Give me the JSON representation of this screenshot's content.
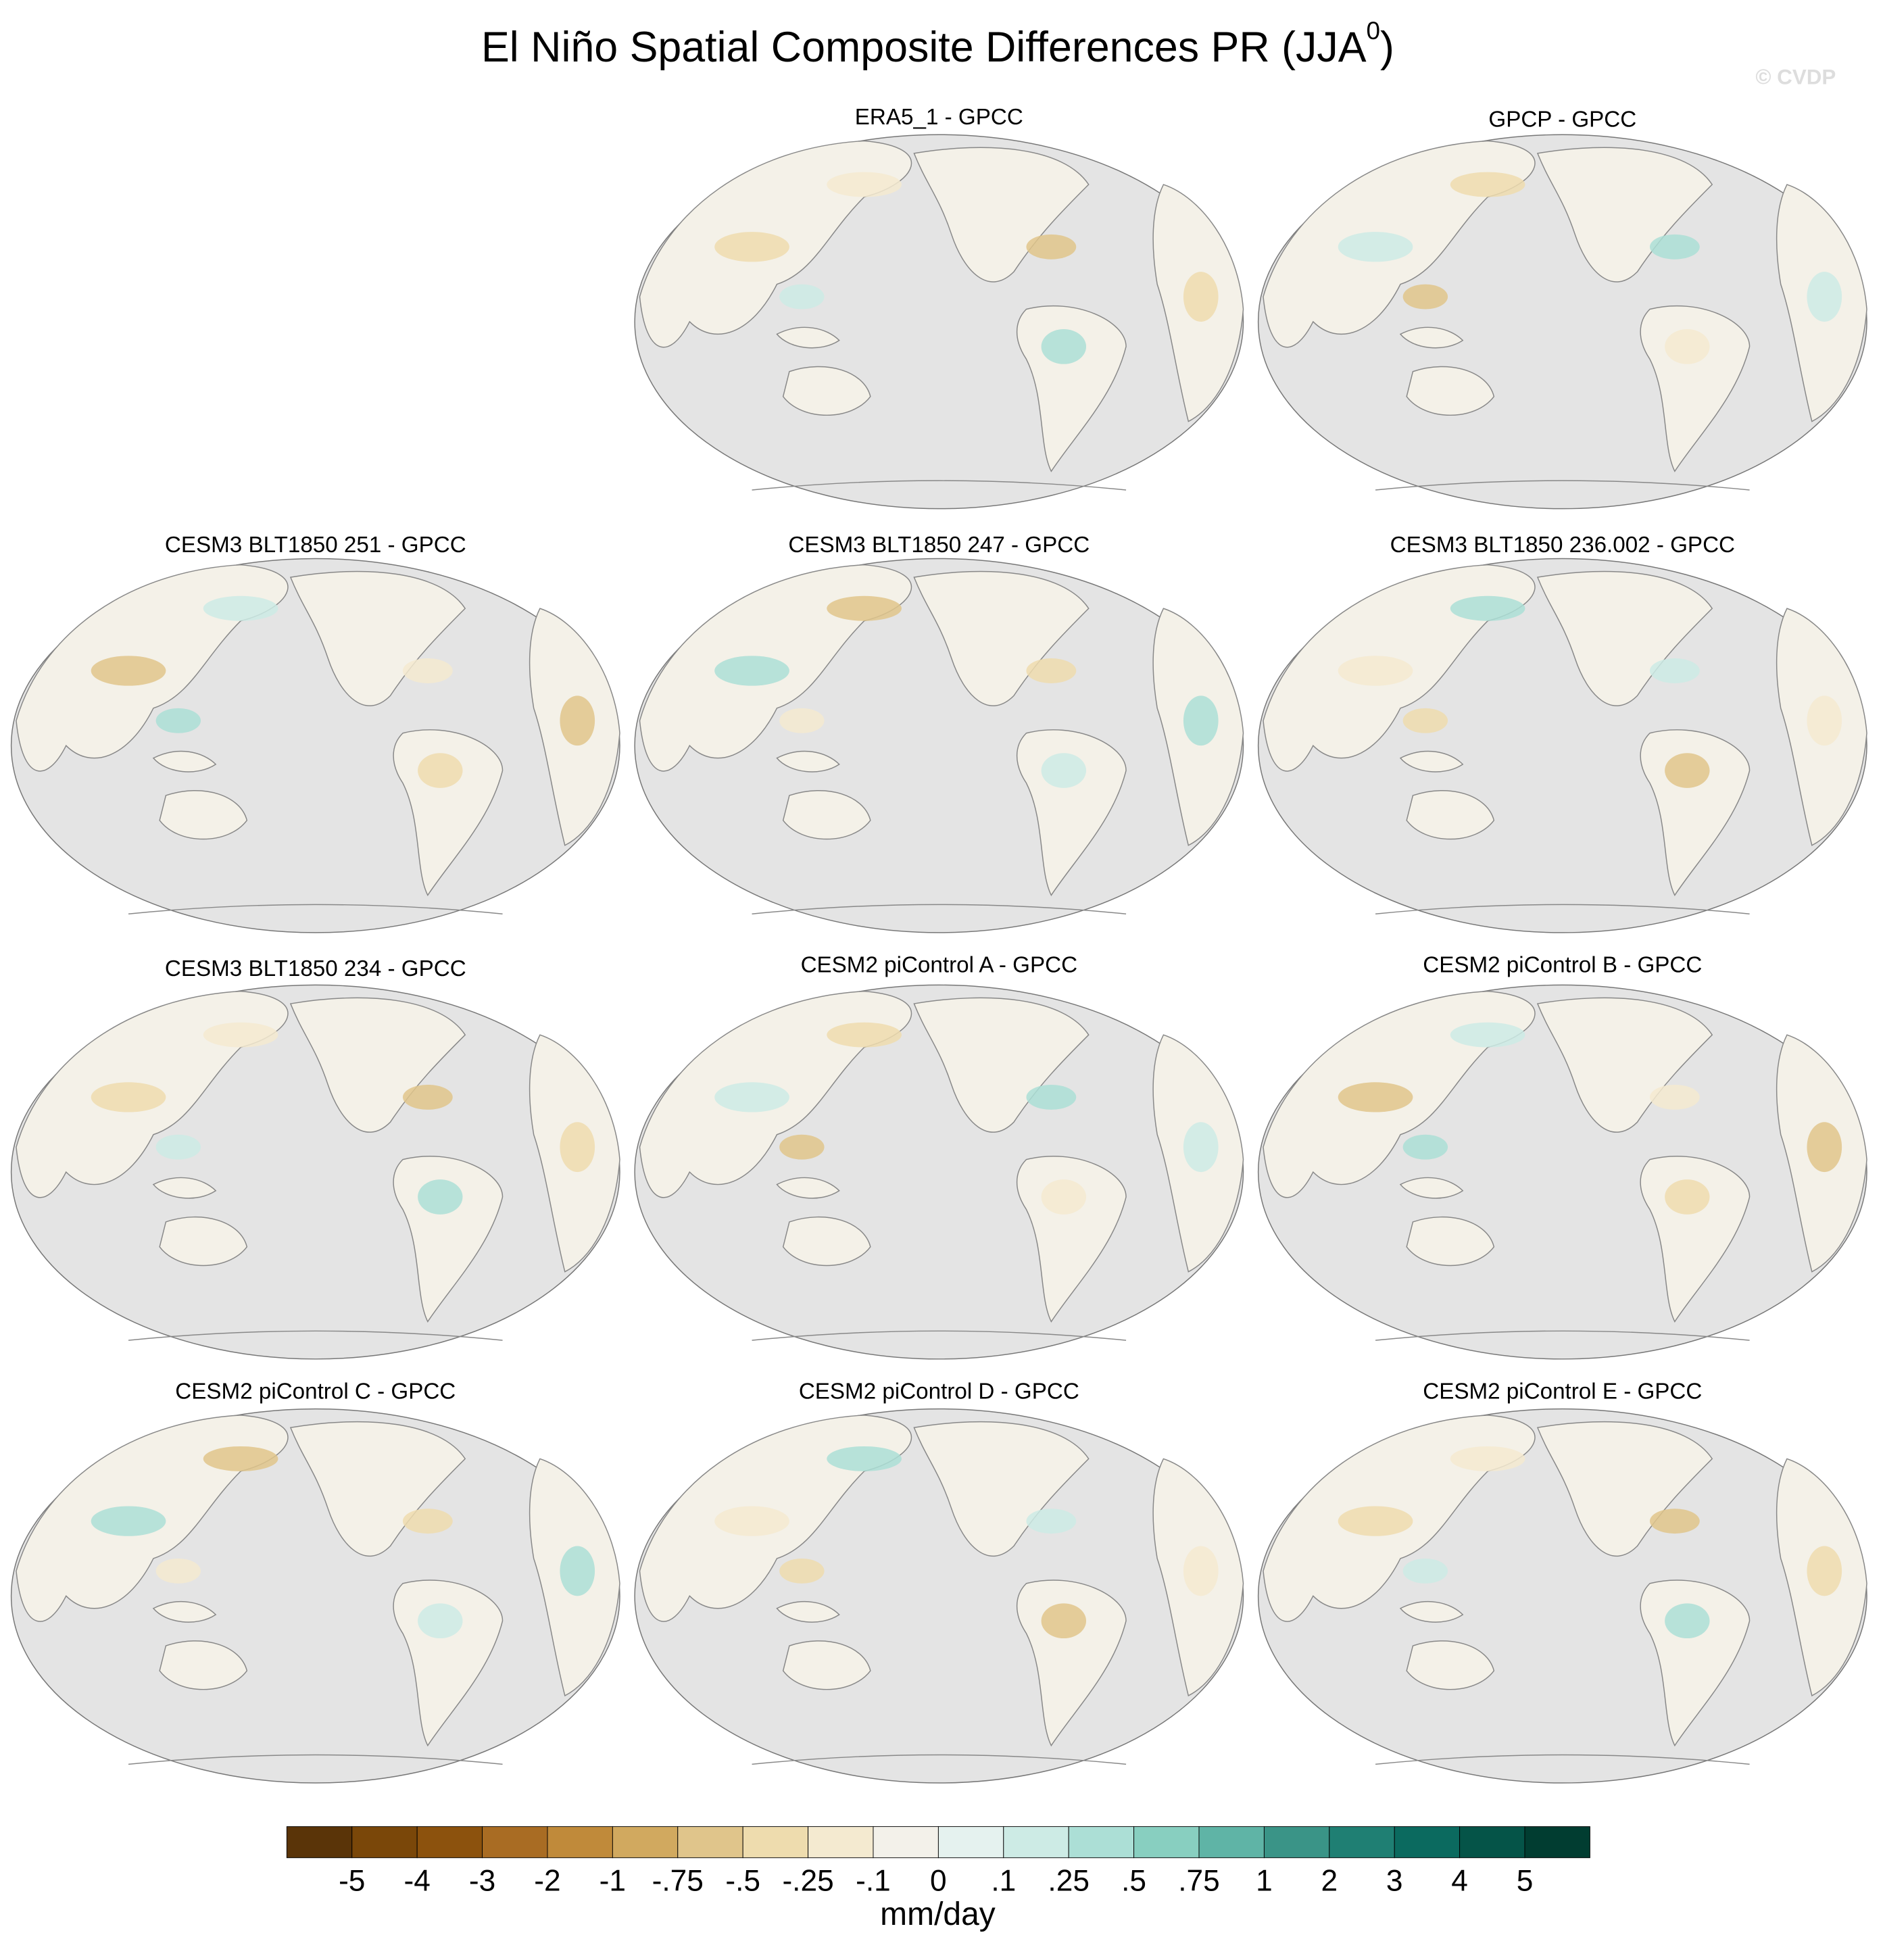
{
  "header": {
    "title": {
      "text": "El Niño Spatial Composite Differences PR (JJA",
      "superscript": "0",
      "suffix": ")"
    },
    "watermark": "© CVDP"
  },
  "panels": [
    {
      "title": "ERA5_1 - GPCC"
    },
    {
      "title": "GPCP - GPCC"
    },
    {
      "title": "CESM3 BLT1850 251 - GPCC"
    },
    {
      "title": "CESM3 BLT1850 247 - GPCC"
    },
    {
      "title": "CESM3 BLT1850 236.002 - GPCC"
    },
    {
      "title": "CESM3 BLT1850 234 - GPCC"
    },
    {
      "title": "CESM2 piControl A - GPCC"
    },
    {
      "title": "CESM2 piControl B - GPCC"
    },
    {
      "title": "CESM2 piControl C - GPCC"
    },
    {
      "title": "CESM2 piControl D - GPCC"
    },
    {
      "title": "CESM2 piControl E - GPCC"
    }
  ],
  "colorbar": {
    "colors": [
      "#5a3408",
      "#7a4709",
      "#8c520d",
      "#a96c23",
      "#c08a3a",
      "#d1a95f",
      "#e0c58b",
      "#eedcae",
      "#f4ead0",
      "#f3f1ea",
      "#e5f2ef",
      "#cdebe5",
      "#acdfd6",
      "#88cfc0",
      "#5fb4a6",
      "#3a9487",
      "#1f7f73",
      "#0b6a5f",
      "#055448",
      "#013d31"
    ],
    "labels": [
      "-5",
      "-4",
      "-3",
      "-2",
      "-1",
      "-.75",
      "-.5",
      "-.25",
      "-.1",
      "0",
      ".1",
      ".25",
      ".5",
      ".75",
      "1",
      "2",
      "3",
      "4",
      "5"
    ],
    "units": "mm/day"
  }
}
